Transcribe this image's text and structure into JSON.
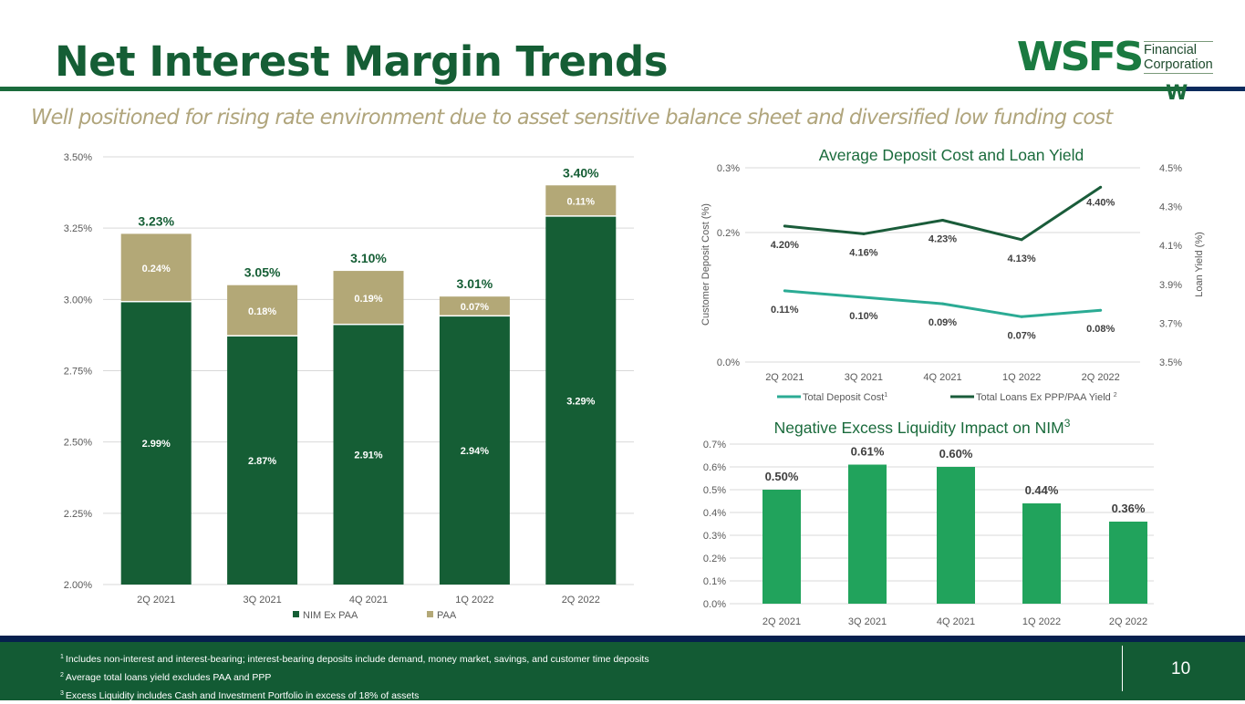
{
  "header": {
    "title": "Net Interest Margin Trends",
    "subtitle": "Well positioned for rising rate environment due to asset sensitive balance sheet and diversified low funding cost",
    "logo": {
      "mark": "WSFS",
      "line1": "Financial",
      "line2": "Corporation",
      "emblem": "W"
    }
  },
  "colors": {
    "nim_ex_paa": "#155e35",
    "paa": "#b3a877",
    "deposit_cost": "#2bab94",
    "loan_yield": "#1a5c3a",
    "excess_liquidity": "#21a35c",
    "title_green": "#155e35",
    "subtitle_tan": "#b0a57c"
  },
  "chart_data": [
    {
      "type": "bar",
      "stacked": true,
      "title": "",
      "categories": [
        "2Q 2021",
        "3Q 2021",
        "4Q 2021",
        "1Q 2022",
        "2Q 2022"
      ],
      "series": [
        {
          "name": "NIM Ex PAA",
          "values": [
            2.99,
            2.87,
            2.91,
            2.94,
            3.29
          ],
          "labels": [
            "2.99%",
            "2.87%",
            "2.91%",
            "2.94%",
            "3.29%"
          ]
        },
        {
          "name": "PAA",
          "values": [
            0.24,
            0.18,
            0.19,
            0.07,
            0.11
          ],
          "labels": [
            "0.24%",
            "0.18%",
            "0.19%",
            "0.07%",
            "0.11%"
          ]
        }
      ],
      "totals": [
        "3.23%",
        "3.05%",
        "3.10%",
        "3.01%",
        "3.40%"
      ],
      "xlabel": "",
      "ylabel": "",
      "ylim": [
        2.0,
        3.5
      ],
      "yticks": [
        "2.00%",
        "2.25%",
        "2.50%",
        "2.75%",
        "3.00%",
        "3.25%",
        "3.50%"
      ],
      "ytick_values": [
        2.0,
        2.25,
        2.5,
        2.75,
        3.0,
        3.25,
        3.5
      ],
      "grid": true,
      "legend": "bottom"
    },
    {
      "type": "line",
      "title": "Average Deposit Cost and Loan Yield",
      "categories": [
        "2Q 2021",
        "3Q 2021",
        "4Q 2021",
        "1Q 2022",
        "2Q 2022"
      ],
      "series": [
        {
          "name": "Total Deposit Cost",
          "footnote": "1",
          "axis": "left",
          "values": [
            0.11,
            0.1,
            0.09,
            0.07,
            0.08
          ],
          "labels": [
            "0.11%",
            "0.10%",
            "0.09%",
            "0.07%",
            "0.08%"
          ]
        },
        {
          "name": "Total Loans Ex PPP/PAA Yield",
          "footnote": "2",
          "axis": "right",
          "values": [
            4.2,
            4.16,
            4.23,
            4.13,
            4.4
          ],
          "labels": [
            "4.20%",
            "4.16%",
            "4.23%",
            "4.13%",
            "4.40%"
          ]
        }
      ],
      "ylabel": "Customer Deposit Cost (%)",
      "ylabel_right": "Loan Yield (%)",
      "ylim": [
        0.0,
        0.3
      ],
      "ylim_right": [
        3.5,
        4.5
      ],
      "yticks": [
        "0.0%",
        "0.2%",
        "0.3%"
      ],
      "ytick_values": [
        0.0,
        0.2,
        0.3
      ],
      "yticks_right": [
        "3.5%",
        "3.7%",
        "3.9%",
        "4.1%",
        "4.3%",
        "4.5%"
      ],
      "ytick_values_right": [
        3.5,
        3.7,
        3.9,
        4.1,
        4.3,
        4.5
      ],
      "grid": true,
      "legend": "bottom"
    },
    {
      "type": "bar",
      "title": "Negative Excess Liquidity Impact on NIM",
      "title_footnote": "3",
      "categories": [
        "2Q 2021",
        "3Q 2021",
        "4Q 2021",
        "1Q 2022",
        "2Q 2022"
      ],
      "values": [
        0.5,
        0.61,
        0.6,
        0.44,
        0.36
      ],
      "labels": [
        "0.50%",
        "0.61%",
        "0.60%",
        "0.44%",
        "0.36%"
      ],
      "xlabel": "",
      "ylabel": "",
      "ylim": [
        0.0,
        0.7
      ],
      "yticks": [
        "0.0%",
        "0.1%",
        "0.2%",
        "0.3%",
        "0.4%",
        "0.5%",
        "0.6%",
        "0.7%"
      ],
      "ytick_values": [
        0.0,
        0.1,
        0.2,
        0.3,
        0.4,
        0.5,
        0.6,
        0.7
      ],
      "grid": true
    }
  ],
  "footer": {
    "footnotes": [
      {
        "num": "1",
        "text": "Includes non-interest and interest-bearing; interest-bearing deposits include demand, money market, savings, and customer time deposits"
      },
      {
        "num": "2",
        "text": "Average total loans yield excludes PAA and PPP"
      },
      {
        "num": "3",
        "text": "Excess Liquidity includes Cash and Investment  Portfolio in excess of 18% of  assets"
      }
    ],
    "page_number": "10"
  }
}
